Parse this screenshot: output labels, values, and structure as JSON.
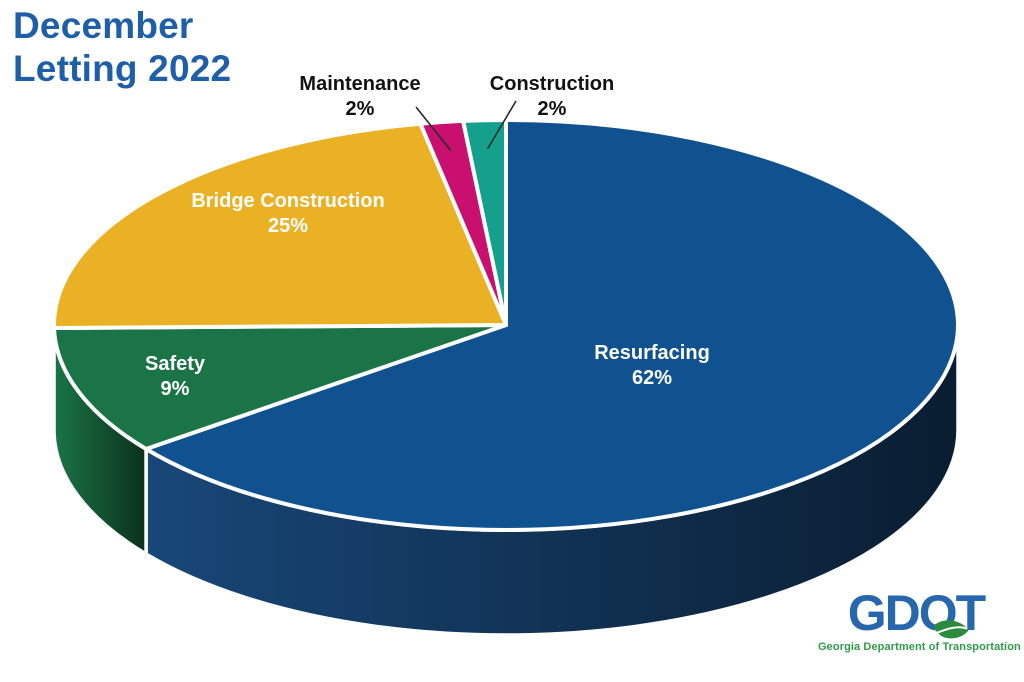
{
  "title": {
    "line1": "December",
    "line2": "Letting 2022",
    "color": "#1e5fa8"
  },
  "chart_data": {
    "type": "pie",
    "title": "December Letting 2022",
    "style": "3d",
    "unit": "%",
    "start_angle_deg": 0,
    "direction": "clockwise",
    "legend_position": "none",
    "slices": [
      {
        "label": "Resurfacing",
        "value": 62,
        "display": "62%",
        "color": "#10528f",
        "side_color": "#143a62",
        "label_placement": "inside"
      },
      {
        "label": "Safety",
        "value": 9,
        "display": "9%",
        "color": "#1b7447",
        "side_color": "#156039",
        "label_placement": "inside"
      },
      {
        "label": "Bridge Construction",
        "value": 25,
        "display": "25%",
        "color": "#ebb125",
        "side_color": "#a87c12",
        "label_placement": "inside"
      },
      {
        "label": "Maintenance",
        "value": 2,
        "display": "2%",
        "color": "#c9106e",
        "side_color": "#8d0b4d",
        "label_placement": "callout"
      },
      {
        "label": "Construction",
        "value": 2,
        "display": "2%",
        "color": "#14a08c",
        "side_color": "#0d7262",
        "label_placement": "callout"
      }
    ]
  },
  "logo": {
    "part_gd": "GD",
    "part_o": "O",
    "part_t": "T",
    "tagline": "Georgia Department of Transportation",
    "blue": "#2767ae",
    "green": "#2f9b4b"
  }
}
